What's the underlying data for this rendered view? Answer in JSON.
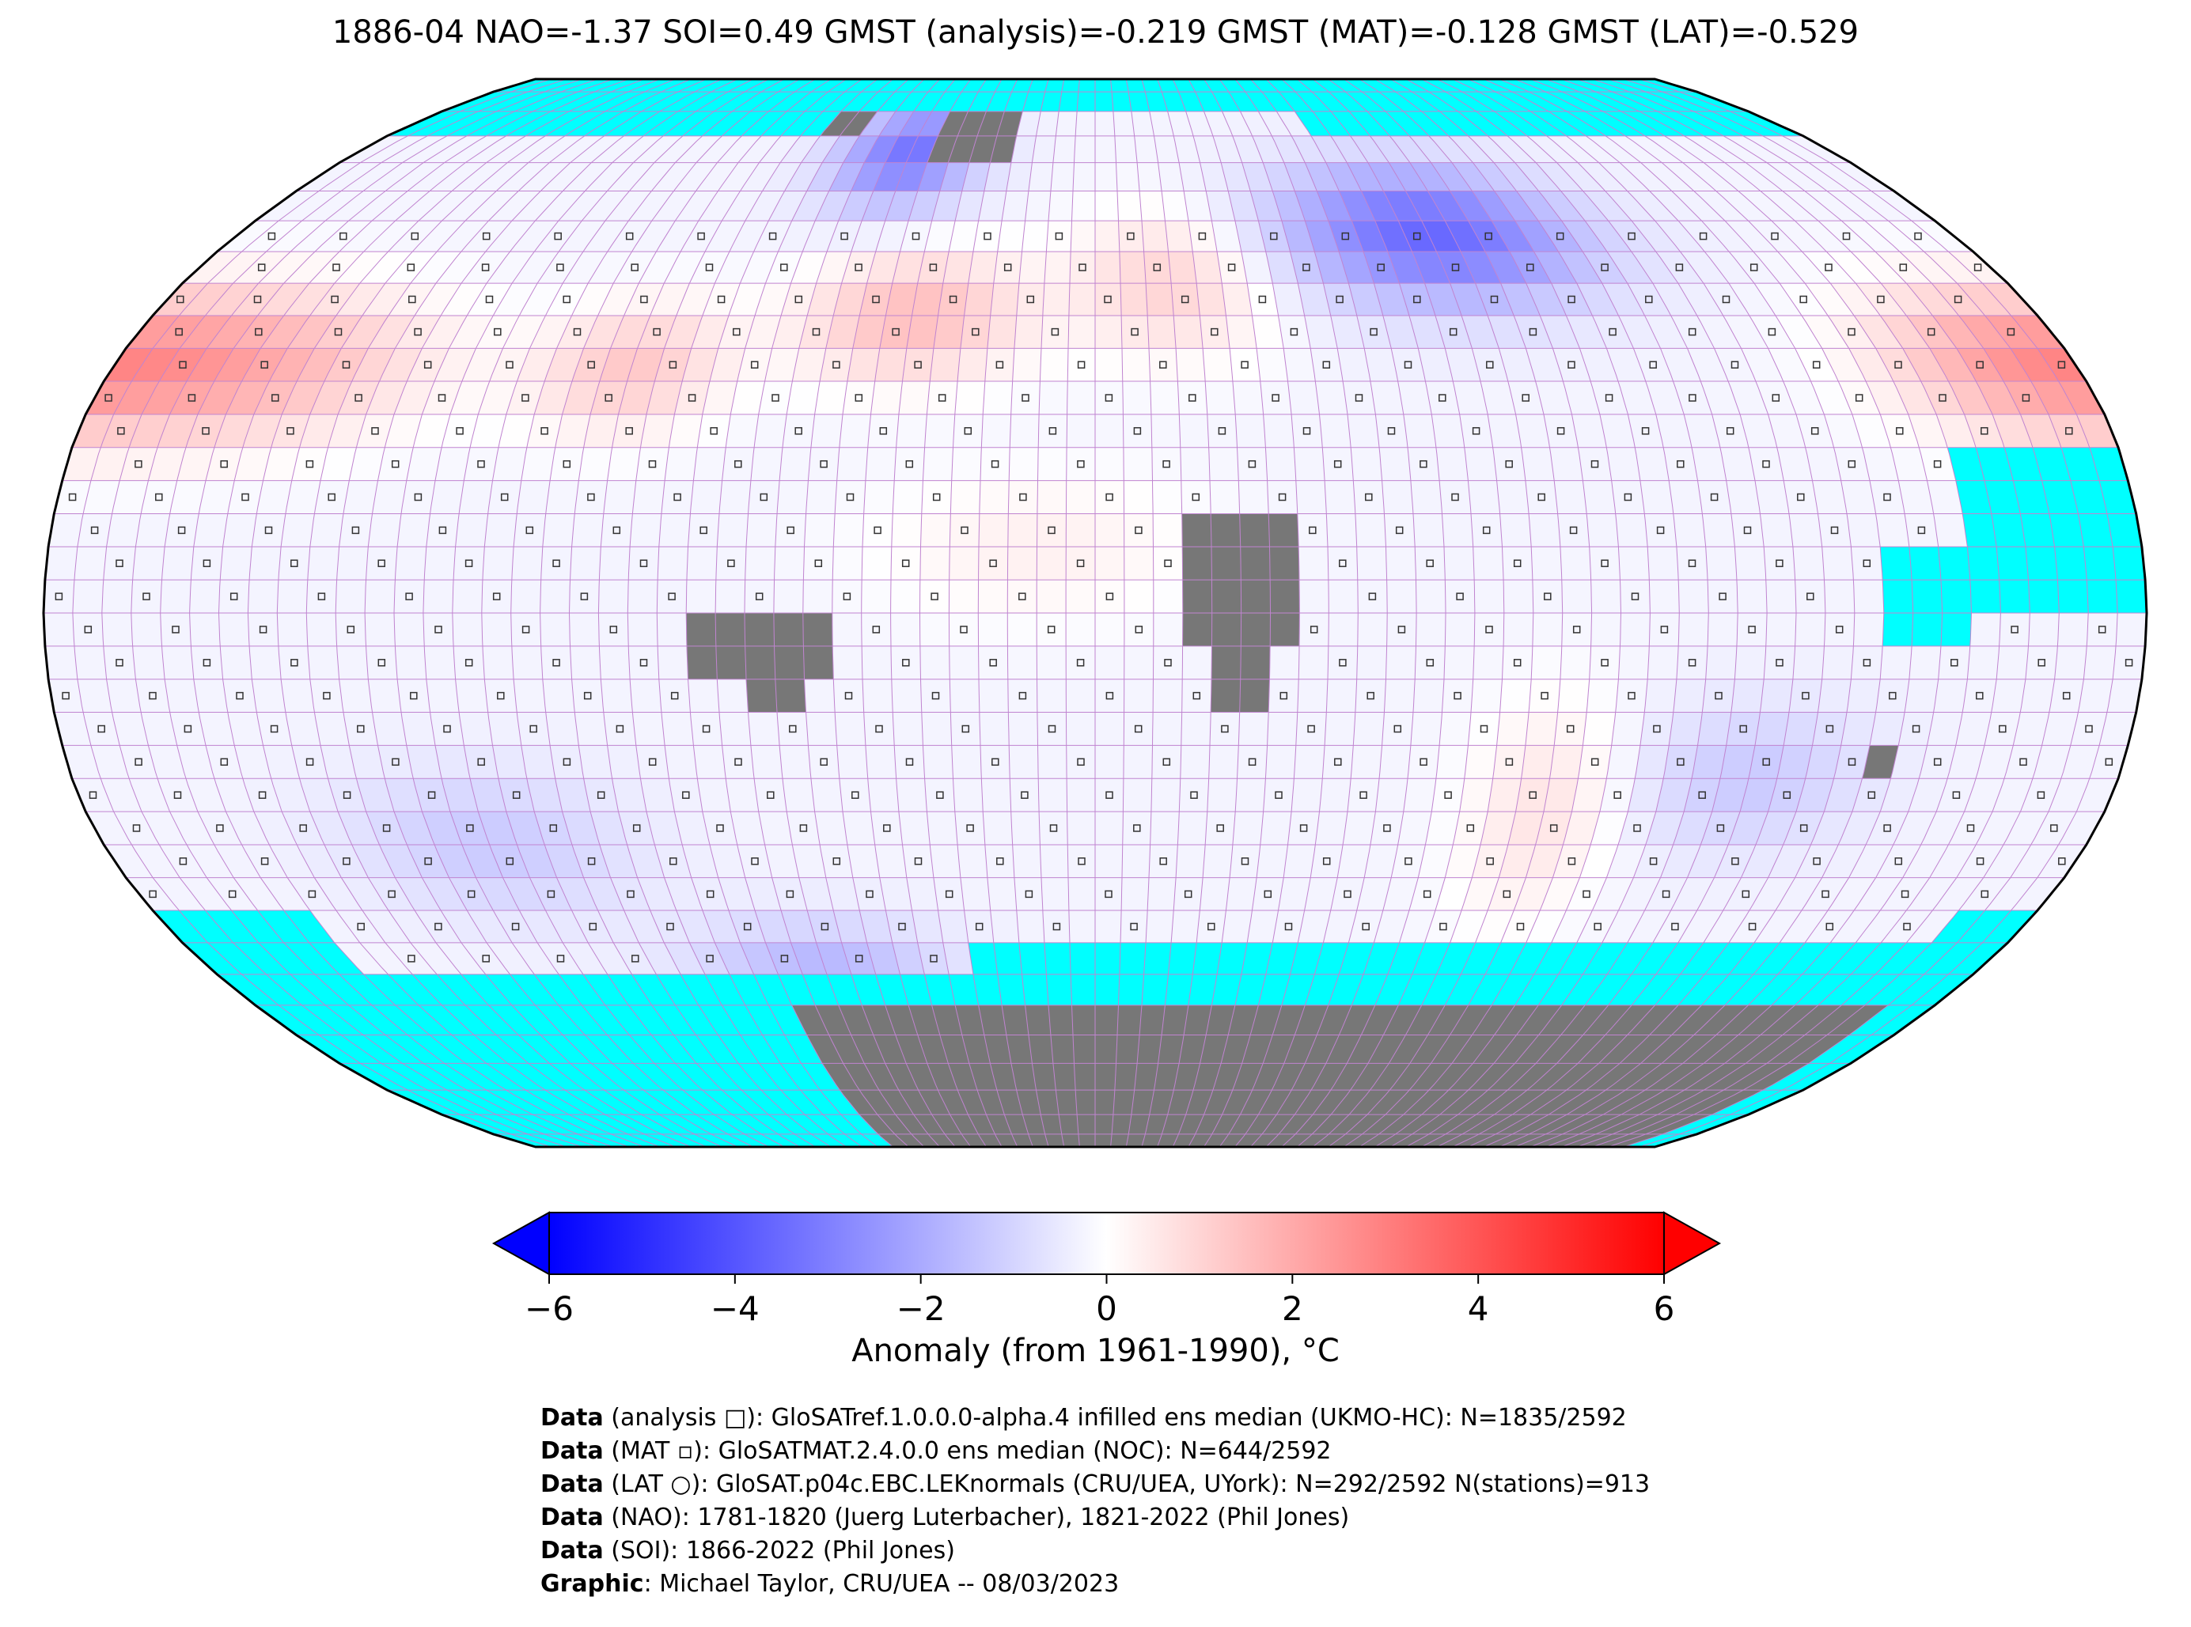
{
  "title": "1886-04 NAO=-1.37 SOI=0.49 GMST (analysis)=-0.219 GMST (MAT)=-0.128 GMST (LAT)=-0.529",
  "colors": {
    "cold": "#0000ff",
    "neutral": "#ffffff",
    "warm": "#ff0000",
    "missing_ocean": "#00ffff",
    "land_mask": "#777777",
    "grid_line": "#c084d0"
  },
  "colorbar": {
    "min": -6,
    "max": 6,
    "ticks": [
      "−6",
      "−4",
      "−2",
      "0",
      "2",
      "4",
      "6"
    ],
    "tick_values": [
      -6,
      -4,
      -2,
      0,
      2,
      4,
      6
    ],
    "label": "Anomaly (from 1961-1990), °C",
    "extend": "both"
  },
  "map": {
    "projection": "Robinson",
    "grid_resolution_deg": 5,
    "regions": [
      {
        "name": "north-atlantic-warm",
        "anomaly": 1.8
      },
      {
        "name": "eastern-north-america-warm",
        "anomaly": 1.5
      },
      {
        "name": "europe-warm",
        "anomaly": 1.3
      },
      {
        "name": "west-siberia-cold",
        "anomaly": -3.3
      },
      {
        "name": "greenland-cold",
        "anomaly": -3.0
      },
      {
        "name": "north-pacific-warm",
        "anomaly": 2.2
      },
      {
        "name": "southern-ocean-cold",
        "anomaly": -1.5
      }
    ]
  },
  "credits": [
    {
      "bold": "Data",
      "text": " (analysis □): GloSATref.1.0.0.0-alpha.4 infilled ens median (UKMO-HC): N=1835/2592"
    },
    {
      "bold": "Data",
      "text": " (MAT ▫): GloSATMAT.2.4.0.0 ens median (NOC): N=644/2592"
    },
    {
      "bold": "Data",
      "text": " (LAT ○): GloSAT.p04c.EBC.LEKnormals (CRU/UEA, UYork): N=292/2592 N(stations)=913"
    },
    {
      "bold": "Data",
      "text": " (NAO): 1781-1820 (Juerg Luterbacher), 1821-2022 (Phil Jones)"
    },
    {
      "bold": "Data",
      "text": " (SOI): 1866-2022 (Phil Jones)"
    },
    {
      "bold": "Graphic",
      "text": ": Michael Taylor, CRU/UEA -- 08/03/2023"
    }
  ]
}
